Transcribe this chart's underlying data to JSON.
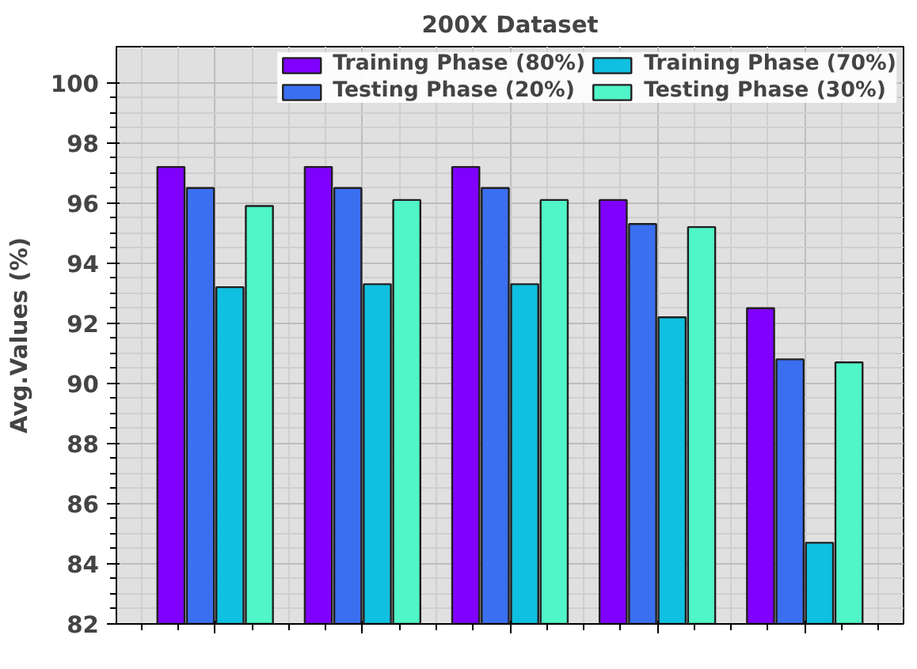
{
  "chart_data": {
    "type": "bar",
    "title": "200X Dataset",
    "ylabel": "Avg.Values (%)",
    "categories": [
      null,
      null,
      null,
      null,
      null
    ],
    "series": [
      {
        "name": "Training Phase (80%)",
        "color": "#7f00ff",
        "values": [
          97.2,
          97.2,
          97.2,
          96.1,
          92.5
        ]
      },
      {
        "name": "Testing Phase (20%)",
        "color": "#3a6ff0",
        "values": [
          96.5,
          96.5,
          96.5,
          95.3,
          90.8
        ]
      },
      {
        "name": "Training Phase (70%)",
        "color": "#10c0e0",
        "values": [
          93.2,
          93.3,
          93.3,
          92.2,
          84.7
        ]
      },
      {
        "name": "Testing Phase (30%)",
        "color": "#50f5c8",
        "values": [
          95.9,
          96.1,
          96.1,
          95.2,
          90.7
        ]
      }
    ],
    "ylim": [
      82,
      101.2
    ],
    "yticks": [
      82,
      84,
      86,
      88,
      90,
      92,
      94,
      96,
      98,
      100
    ],
    "grid": true,
    "legend": "top",
    "tick_labels": "y"
  }
}
